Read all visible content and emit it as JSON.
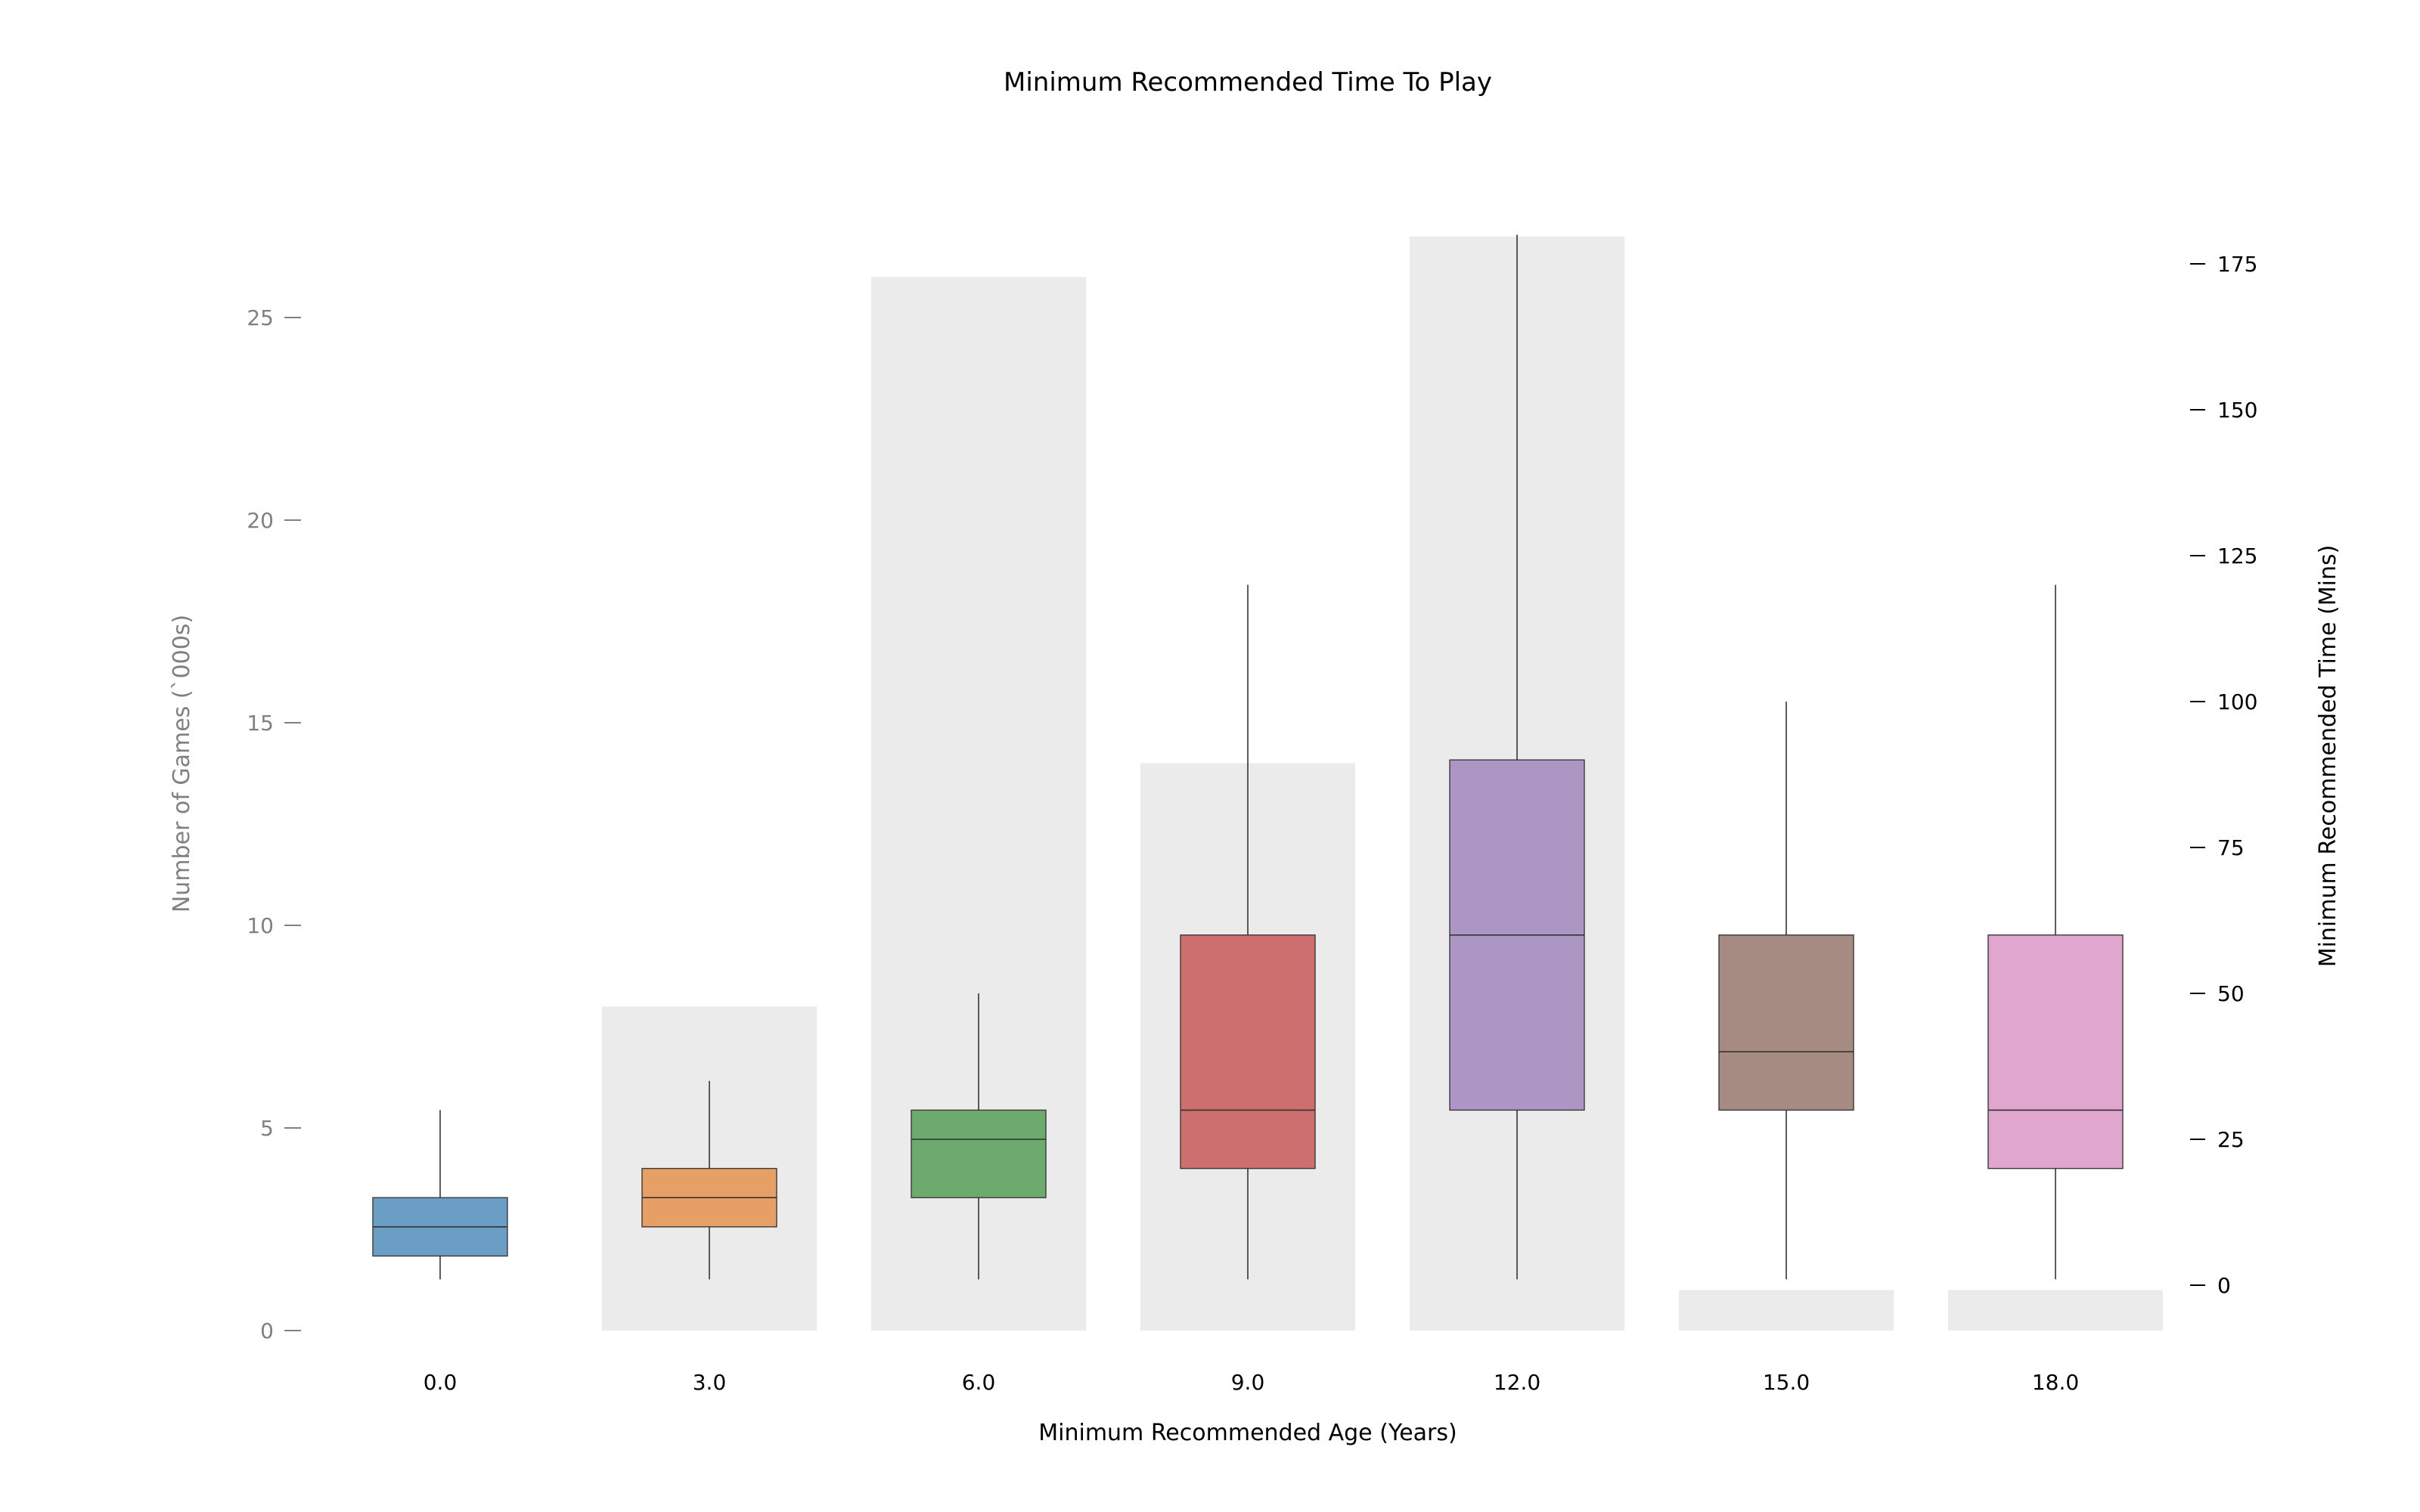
{
  "chart_data": {
    "type": "bar+box",
    "title": "Minimum Recommended Time To Play",
    "xlabel": "Minimum Recommended Age (Years)",
    "ylabel_left": "Number of Games (`000s)",
    "ylabel_right": "Minimum Recommended Time (Mins)",
    "categories": [
      "0.0",
      "3.0",
      "6.0",
      "9.0",
      "12.0",
      "15.0",
      "18.0"
    ],
    "ylim_left": [
      0,
      27
    ],
    "yticks_left": [
      0,
      5,
      10,
      15,
      20,
      25
    ],
    "ylim_right": [
      -8,
      180
    ],
    "yticks_right": [
      0,
      25,
      50,
      75,
      100,
      125,
      150,
      175
    ],
    "grid": false,
    "bar_color": "#ebebeb",
    "bars": {
      "name": "Number of Games",
      "values": [
        0,
        8,
        26,
        14,
        27,
        1,
        1
      ]
    },
    "boxes": [
      {
        "category": "0.0",
        "whisker_low": 1,
        "q1": 5,
        "median": 10,
        "q3": 15,
        "whisker_high": 30,
        "color": "#6a9ec5"
      },
      {
        "category": "3.0",
        "whisker_low": 1,
        "q1": 10,
        "median": 15,
        "q3": 20,
        "whisker_high": 35,
        "color": "#e69f64"
      },
      {
        "category": "6.0",
        "whisker_low": 1,
        "q1": 15,
        "median": 25,
        "q3": 30,
        "whisker_high": 50,
        "color": "#6caa6d"
      },
      {
        "category": "9.0",
        "whisker_low": 1,
        "q1": 20,
        "median": 30,
        "q3": 60,
        "whisker_high": 120,
        "color": "#cd6f6f"
      },
      {
        "category": "12.0",
        "whisker_low": 1,
        "q1": 30,
        "median": 60,
        "q3": 90,
        "whisker_high": 180,
        "color": "#ac96c4"
      },
      {
        "category": "15.0",
        "whisker_low": 1,
        "q1": 30,
        "median": 40,
        "q3": 60,
        "whisker_high": 100,
        "color": "#a68b83"
      },
      {
        "category": "18.0",
        "whisker_low": 1,
        "q1": 20,
        "median": 30,
        "q3": 60,
        "whisker_high": 120,
        "color": "#e1a6cd"
      }
    ]
  }
}
